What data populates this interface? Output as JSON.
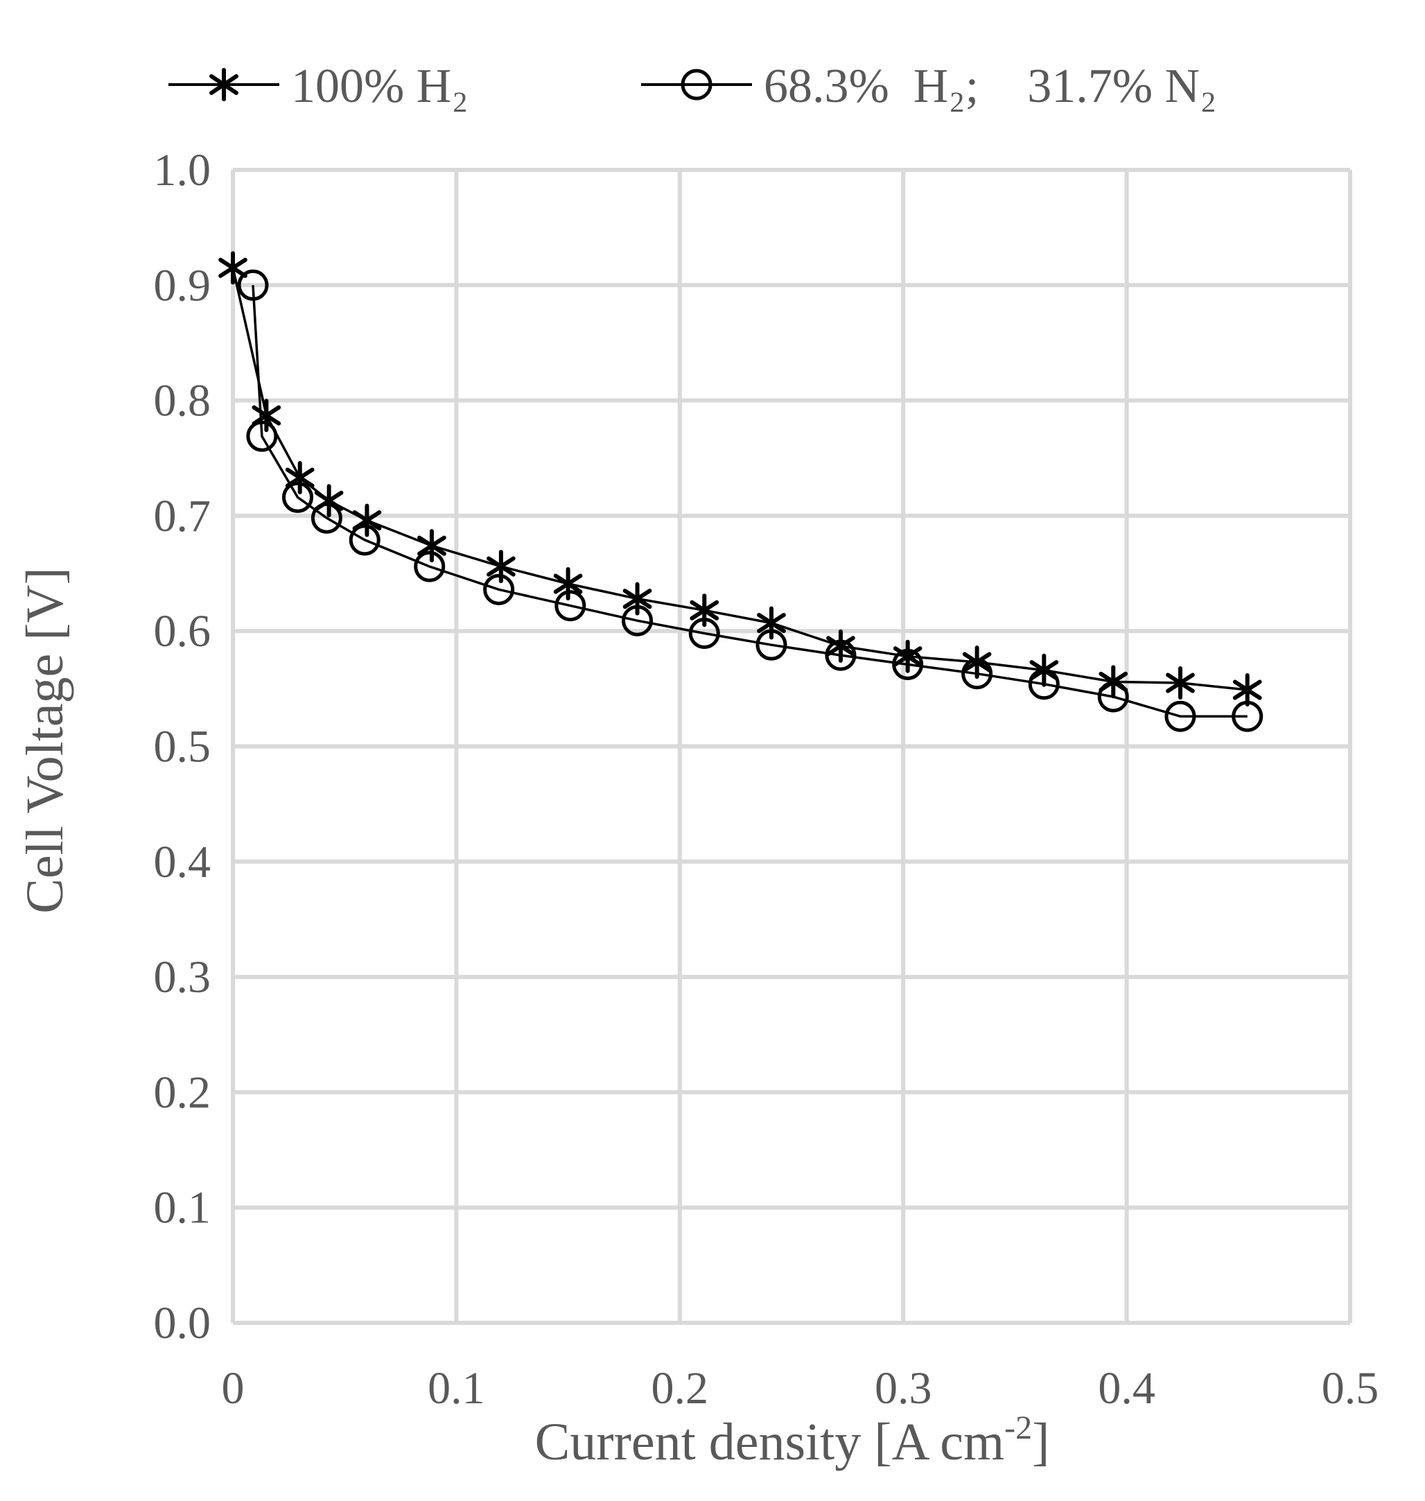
{
  "chart_data": {
    "type": "line",
    "title": "",
    "xlabel": "Current density [A cm",
    "xlabel_sup": "-2",
    "xlabel_end": "]",
    "ylabel": "Cell Voltage [V]",
    "xlim": [
      0,
      0.5
    ],
    "ylim": [
      0,
      1.0
    ],
    "x_ticks": [
      "0",
      "0.1",
      "0.2",
      "0.3",
      "0.4",
      "0.5"
    ],
    "y_ticks": [
      "0.0",
      "0.1",
      "0.2",
      "0.3",
      "0.4",
      "0.5",
      "0.6",
      "0.7",
      "0.8",
      "0.9",
      "1.0"
    ],
    "grid": true,
    "legend_position": "top",
    "series": [
      {
        "name": "100% H₂",
        "marker": "star",
        "x": [
          0.0,
          0.015,
          0.03,
          0.043,
          0.06,
          0.089,
          0.12,
          0.15,
          0.181,
          0.211,
          0.241,
          0.272,
          0.302,
          0.333,
          0.363,
          0.394,
          0.424,
          0.454
        ],
        "y": [
          0.915,
          0.787,
          0.733,
          0.713,
          0.696,
          0.674,
          0.656,
          0.641,
          0.628,
          0.618,
          0.607,
          0.587,
          0.578,
          0.573,
          0.566,
          0.556,
          0.555,
          0.549
        ]
      },
      {
        "name": "68.3%  H₂;    31.7% N₂",
        "marker": "circle",
        "x": [
          0.009,
          0.013,
          0.029,
          0.042,
          0.059,
          0.088,
          0.119,
          0.151,
          0.181,
          0.211,
          0.241,
          0.272,
          0.302,
          0.333,
          0.363,
          0.394,
          0.424,
          0.454
        ],
        "y": [
          0.9,
          0.769,
          0.716,
          0.698,
          0.679,
          0.656,
          0.636,
          0.622,
          0.609,
          0.598,
          0.588,
          0.579,
          0.571,
          0.563,
          0.554,
          0.543,
          0.526,
          0.526
        ]
      }
    ]
  }
}
